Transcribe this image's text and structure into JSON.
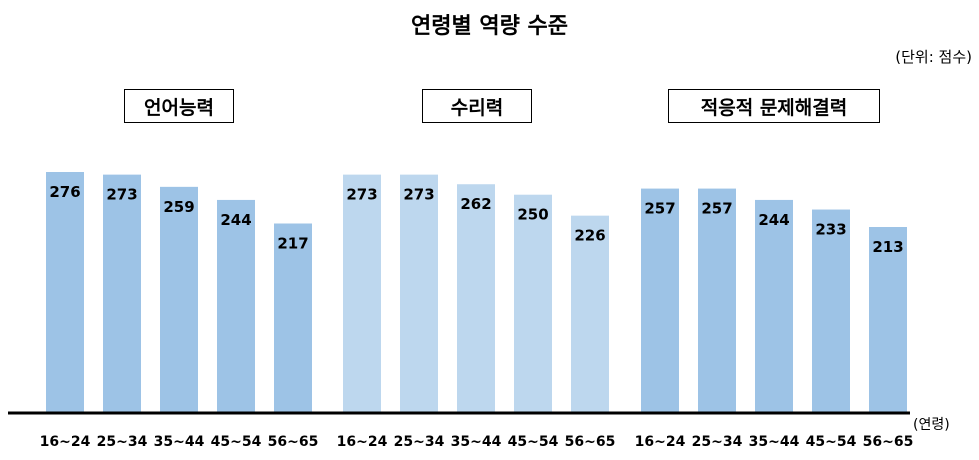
{
  "title": "연령별 역량 수준",
  "unit": "(단위: 점수)",
  "x_unit": "(연령)",
  "colors": {
    "group1": "#9dc3e6",
    "group2": "#bdd7ee",
    "group3": "#9dc3e6",
    "axis": "#000000"
  },
  "chart_data": {
    "type": "bar",
    "title": "연령별 역량 수준",
    "xlabel": "(연령)",
    "ylabel": "",
    "ylim": [
      0,
      300
    ],
    "grid": false,
    "legend": "none",
    "groups": [
      {
        "name": "언어능력",
        "categories": [
          "16~24",
          "25~34",
          "35~44",
          "45~54",
          "56~65"
        ],
        "values": [
          276,
          273,
          259,
          244,
          217
        ]
      },
      {
        "name": "수리력",
        "categories": [
          "16~24",
          "25~34",
          "35~44",
          "45~54",
          "56~65"
        ],
        "values": [
          273,
          273,
          262,
          250,
          226
        ]
      },
      {
        "name": "적응적 문제해결력",
        "categories": [
          "16~24",
          "25~34",
          "35~44",
          "45~54",
          "56~65"
        ],
        "values": [
          257,
          257,
          244,
          233,
          213
        ]
      }
    ]
  }
}
